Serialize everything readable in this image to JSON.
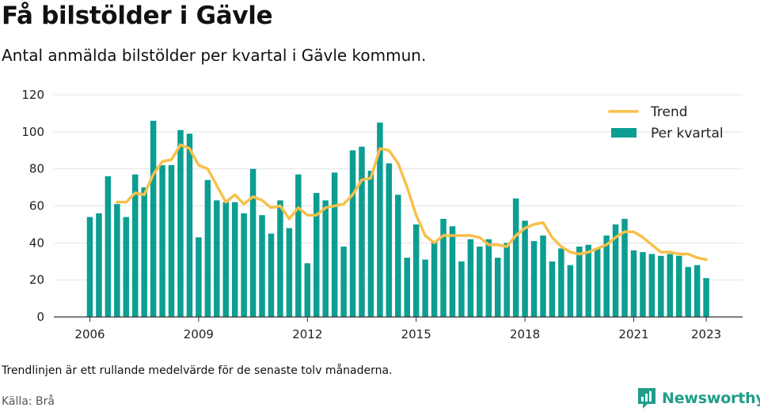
{
  "title": "Få bilstölder i Gävle",
  "subtitle": "Antal anmälda bilstölder per kvartal i Gävle kommun.",
  "note": "Trendlinjen är ett rullande medelvärde för de senaste tolv månaderna.",
  "source": "Källa: Brå",
  "logo": {
    "text": "Newsworthy",
    "icon": "newsworthy-logo-icon"
  },
  "colors": {
    "bars": "#0c9e92",
    "trend": "#f7c04a",
    "grid": "#e3e3e3",
    "axis": "#333333"
  },
  "chart_data": {
    "type": "bar",
    "title": "",
    "xlabel": "",
    "ylabel": "",
    "ylim": [
      0,
      120
    ],
    "yticks": [
      0,
      20,
      40,
      60,
      80,
      100,
      120
    ],
    "xticks": [
      "2006",
      "2009",
      "2012",
      "2015",
      "2018",
      "2021",
      "2023"
    ],
    "grid": true,
    "legend": {
      "position": "top-right",
      "entries": [
        "Trend",
        "Per kvartal"
      ]
    },
    "categories": [
      "2006 Q1",
      "2006 Q2",
      "2006 Q3",
      "2006 Q4",
      "2007 Q1",
      "2007 Q2",
      "2007 Q3",
      "2007 Q4",
      "2008 Q1",
      "2008 Q2",
      "2008 Q3",
      "2008 Q4",
      "2009 Q1",
      "2009 Q2",
      "2009 Q3",
      "2009 Q4",
      "2010 Q1",
      "2010 Q2",
      "2010 Q3",
      "2010 Q4",
      "2011 Q1",
      "2011 Q2",
      "2011 Q3",
      "2011 Q4",
      "2012 Q1",
      "2012 Q2",
      "2012 Q3",
      "2012 Q4",
      "2013 Q1",
      "2013 Q2",
      "2013 Q3",
      "2013 Q4",
      "2014 Q1",
      "2014 Q2",
      "2014 Q3",
      "2014 Q4",
      "2015 Q1",
      "2015 Q2",
      "2015 Q3",
      "2015 Q4",
      "2016 Q1",
      "2016 Q2",
      "2016 Q3",
      "2016 Q4",
      "2017 Q1",
      "2017 Q2",
      "2017 Q3",
      "2017 Q4",
      "2018 Q1",
      "2018 Q2",
      "2018 Q3",
      "2018 Q4",
      "2019 Q1",
      "2019 Q2",
      "2019 Q3",
      "2019 Q4",
      "2020 Q1",
      "2020 Q2",
      "2020 Q3",
      "2020 Q4",
      "2021 Q1",
      "2021 Q2",
      "2021 Q3",
      "2021 Q4",
      "2022 Q1",
      "2022 Q2",
      "2022 Q3",
      "2022 Q4",
      "2023 Q1"
    ],
    "series": [
      {
        "name": "Per kvartal",
        "type": "bar",
        "values": [
          54,
          56,
          76,
          61,
          54,
          77,
          70,
          106,
          82,
          82,
          101,
          99,
          43,
          74,
          63,
          62,
          62,
          56,
          80,
          55,
          45,
          63,
          48,
          77,
          29,
          67,
          63,
          78,
          38,
          90,
          92,
          79,
          105,
          83,
          66,
          32,
          50,
          31,
          41,
          53,
          49,
          30,
          42,
          38,
          42,
          32,
          40,
          64,
          52,
          41,
          44,
          30,
          37,
          28,
          38,
          39,
          37,
          44,
          50,
          53,
          36,
          35,
          34,
          33,
          34,
          33,
          27,
          28,
          21
        ]
      },
      {
        "name": "Trend",
        "type": "line",
        "values": [
          null,
          null,
          null,
          62,
          62,
          67,
          66,
          77,
          84,
          85,
          93,
          91,
          82,
          80,
          71,
          62,
          66,
          61,
          65,
          63,
          59,
          60,
          53,
          59,
          55,
          55,
          59,
          60,
          61,
          66,
          74,
          75,
          91,
          90,
          83,
          70,
          55,
          44,
          40,
          44,
          44,
          44,
          44,
          43,
          39,
          39,
          38,
          44,
          48,
          50,
          51,
          43,
          38,
          35,
          34,
          35,
          37,
          39,
          43,
          46,
          46,
          43,
          39,
          35,
          35,
          34,
          34,
          32,
          31
        ]
      }
    ]
  }
}
